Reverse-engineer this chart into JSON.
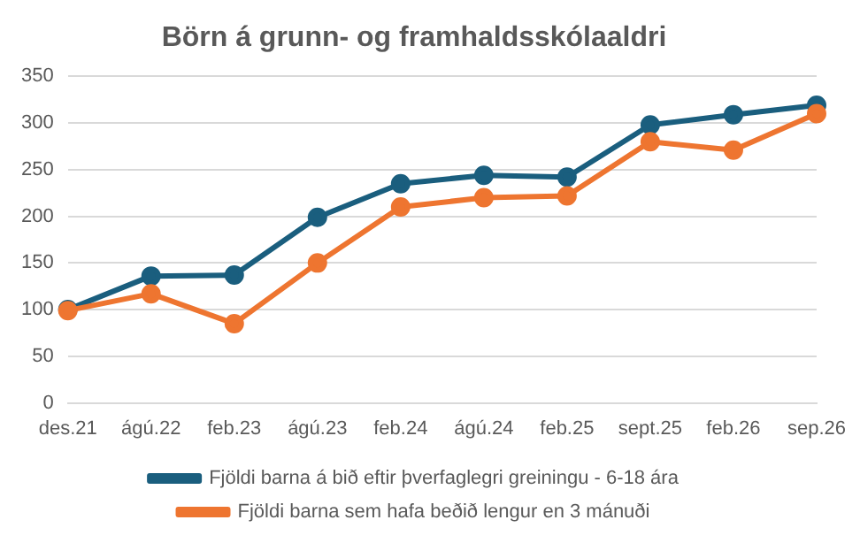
{
  "chart_data": {
    "type": "line",
    "title": "Börn á grunn- og framhaldsskólaaldri",
    "categories": [
      "des.21",
      "ágú.22",
      "feb.23",
      "ágú.23",
      "feb.24",
      "ágú.24",
      "feb.25",
      "sept.25",
      "feb.26",
      "sep.26"
    ],
    "series": [
      {
        "name": "Fjöldi barna á bið eftir þverfaglegri greiningu - 6-18 ára",
        "color": "#1a5e7e",
        "values": [
          100,
          136,
          137,
          199,
          235,
          244,
          242,
          298,
          309,
          319
        ]
      },
      {
        "name": "Fjöldi barna sem hafa beðið lengur en 3 mánuði",
        "color": "#ee7530",
        "values": [
          99,
          117,
          85,
          150,
          210,
          220,
          222,
          280,
          271,
          310
        ]
      }
    ],
    "ylim": [
      0,
      350
    ],
    "yticks": [
      0,
      50,
      100,
      150,
      200,
      250,
      300,
      350
    ],
    "grid": "y",
    "legend": "bottom",
    "marker": "circle",
    "line_style": "solid"
  }
}
